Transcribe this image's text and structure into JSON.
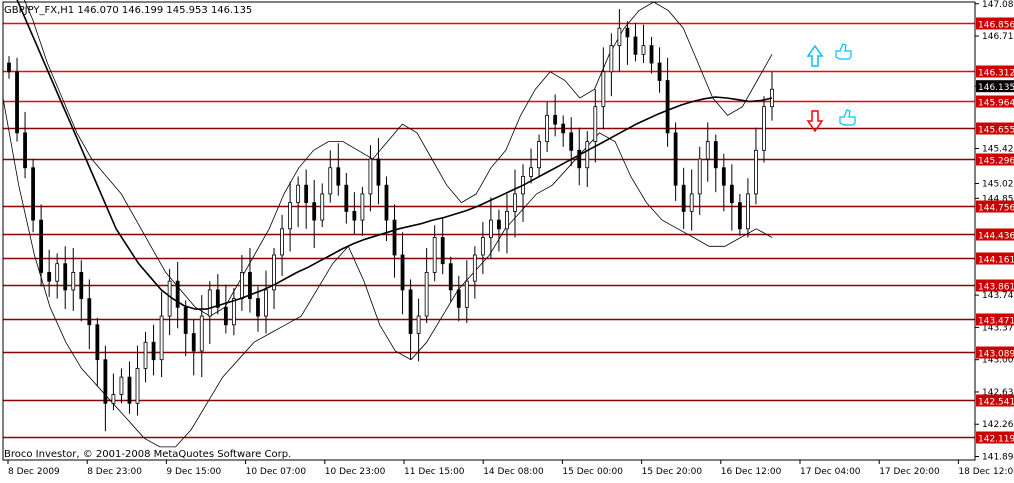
{
  "header": {
    "symbol_line": "GBPJPY_FX,H1  146.070 146.199 145.953 146.135"
  },
  "footer": {
    "copyright": "Broco Investor, © 2001-2008 MetaQuotes Software Corp."
  },
  "colors": {
    "background": "#ffffff",
    "candles": "#000000",
    "resistance_line": "#ff0000",
    "support_line": "#8b0000",
    "level_label_bg": "#cc0000",
    "current_price_bg": "#000000",
    "up_arrow": "#00bfff",
    "down_arrow": "#ff0000",
    "thumb_icon": "#00bfff"
  },
  "icons": [
    "arrow-up-icon",
    "arrow-down-icon",
    "thumb-up-icon"
  ],
  "chart_data": {
    "type": "candlestick",
    "symbol": "GBPJPY_FX",
    "timeframe": "H1",
    "ohlc_last": {
      "open": 146.07,
      "high": 146.199,
      "low": 145.953,
      "close": 146.135
    },
    "current_price": 146.135,
    "ylim": [
      141.85,
      147.1
    ],
    "y_ticks": [
      147.08,
      146.71,
      146.135,
      145.42,
      145.02,
      144.85,
      144.42,
      144.13,
      143.74,
      143.37,
      143.0,
      142.63,
      142.26,
      141.89
    ],
    "y_tick_labels": [
      "147.080",
      "146.710",
      "146.135",
      "145.420",
      "145.020",
      "144.850",
      "144.420",
      "144.130",
      "143.740",
      "143.370",
      "143.000",
      "142.630",
      "142.260",
      "141.890"
    ],
    "x_tick_labels": [
      "8 Dec 2009",
      "8 Dec 23:00",
      "9 Dec 15:00",
      "10 Dec 07:00",
      "10 Dec 23:00",
      "11 Dec 15:00",
      "14 Dec 08:00",
      "15 Dec 00:00",
      "15 Dec 20:00",
      "16 Dec 12:00",
      "17 Dec 04:00",
      "17 Dec 20:00",
      "18 Dec 12:00"
    ],
    "levels": [
      {
        "price": 146.856,
        "label": "146.856"
      },
      {
        "price": 146.312,
        "label": "146.312"
      },
      {
        "price": 145.964,
        "label": "145.964"
      },
      {
        "price": 145.655,
        "label": "145.655"
      },
      {
        "price": 145.296,
        "label": "145.296"
      },
      {
        "price": 144.756,
        "label": "144.756"
      },
      {
        "price": 144.436,
        "label": "144.436"
      },
      {
        "price": 144.161,
        "label": "144.161"
      },
      {
        "price": 143.861,
        "label": "143.861"
      },
      {
        "price": 143.471,
        "label": "143.471"
      },
      {
        "price": 143.089,
        "label": "143.089"
      },
      {
        "price": 142.541,
        "label": "142.541"
      },
      {
        "price": 142.119,
        "label": "142.119"
      }
    ],
    "closes": [
      146.3,
      145.6,
      145.2,
      144.6,
      144.0,
      143.9,
      144.1,
      143.8,
      144.0,
      143.7,
      143.4,
      143.0,
      142.5,
      142.6,
      142.8,
      142.5,
      142.9,
      143.2,
      143.0,
      143.5,
      143.9,
      143.6,
      143.3,
      143.1,
      143.5,
      143.8,
      143.6,
      143.4,
      143.7,
      144.0,
      143.7,
      143.5,
      143.8,
      144.2,
      144.5,
      144.8,
      145.0,
      144.8,
      144.6,
      144.9,
      145.2,
      145.0,
      144.7,
      144.6,
      144.9,
      145.3,
      145.0,
      144.6,
      144.2,
      143.8,
      143.3,
      143.5,
      144.0,
      144.4,
      144.1,
      143.8,
      143.6,
      143.9,
      144.2,
      144.4,
      144.6,
      144.5,
      144.7,
      144.9,
      145.1,
      145.2,
      145.5,
      145.8,
      145.7,
      145.6,
      145.4,
      145.2,
      145.5,
      145.9,
      146.3,
      146.6,
      146.8,
      146.7,
      146.5,
      146.6,
      146.4,
      146.2,
      145.6,
      145.0,
      144.7,
      144.9,
      145.3,
      145.5,
      145.2,
      145.0,
      144.8,
      144.5,
      144.9,
      145.4,
      145.9,
      146.1
    ],
    "ma": [
      147.5,
      147.2,
      146.9,
      146.6,
      146.3,
      146.0,
      145.7,
      145.4,
      145.1,
      144.8,
      144.5,
      144.3,
      144.1,
      143.95,
      143.8,
      143.7,
      143.62,
      143.58,
      143.58,
      143.62,
      143.66,
      143.7,
      143.75,
      143.8,
      143.86,
      143.93,
      144.0,
      144.06,
      144.13,
      144.2,
      144.27,
      144.33,
      144.38,
      144.42,
      144.46,
      144.5,
      144.53,
      144.56,
      144.6,
      144.63,
      144.67,
      144.71,
      144.76,
      144.82,
      144.88,
      144.94,
      145.0,
      145.07,
      145.14,
      145.21,
      145.28,
      145.35,
      145.42,
      145.49,
      145.56,
      145.63,
      145.7,
      145.76,
      145.82,
      145.87,
      145.92,
      145.96,
      145.99,
      146.01,
      146.0,
      145.98,
      145.96,
      145.97,
      146.0
    ],
    "bb_upper": [
      147.6,
      147.3,
      146.9,
      146.4,
      146.0,
      145.6,
      145.3,
      145.1,
      144.9,
      144.6,
      144.3,
      144.0,
      143.8,
      143.6,
      143.5,
      143.6,
      143.9,
      144.2,
      144.5,
      144.9,
      145.2,
      145.4,
      145.5,
      145.5,
      145.4,
      145.3,
      145.5,
      145.7,
      145.6,
      145.3,
      145.0,
      144.8,
      144.9,
      145.2,
      145.4,
      145.8,
      146.1,
      146.3,
      146.2,
      146.0,
      146.1,
      146.5,
      146.8,
      147.0,
      147.1,
      147.0,
      146.8,
      146.4,
      146.0,
      145.8,
      145.9,
      146.2,
      146.5
    ],
    "bb_lower": [
      146.0,
      145.0,
      144.2,
      143.6,
      143.2,
      142.9,
      142.7,
      142.5,
      142.3,
      142.1,
      142.0,
      142.0,
      142.2,
      142.5,
      142.8,
      143.0,
      143.2,
      143.3,
      143.4,
      143.5,
      143.8,
      144.1,
      144.3,
      143.9,
      143.4,
      143.1,
      143.0,
      143.2,
      143.5,
      143.8,
      144.0,
      144.2,
      144.5,
      144.7,
      144.9,
      145.0,
      145.2,
      145.4,
      145.6,
      145.5,
      145.1,
      144.8,
      144.6,
      144.5,
      144.4,
      144.3,
      144.3,
      144.4,
      144.5,
      144.4
    ]
  }
}
